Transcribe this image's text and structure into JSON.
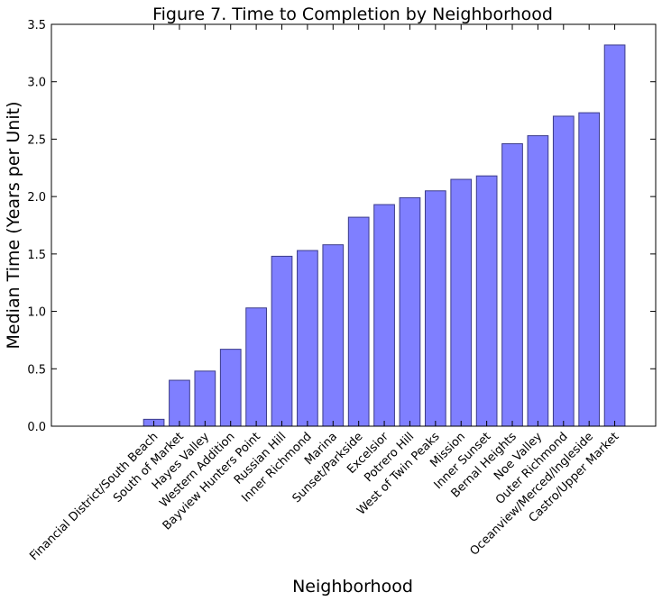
{
  "chart_data": {
    "type": "bar",
    "title": "Figure 7. Time to Completion by Neighborhood",
    "xlabel": "Neighborhood",
    "ylabel": "Median Time (Years per Unit)",
    "ylim": [
      0,
      3.5
    ],
    "yticks": [
      "0.0",
      "0.5",
      "1.0",
      "1.5",
      "2.0",
      "2.5",
      "3.0",
      "3.5"
    ],
    "grid": false,
    "categories": [
      "Financial District/South Beach",
      "South of Market",
      "Hayes Valley",
      "Western Addition",
      "Bayview Hunters Point",
      "Russian Hill",
      "Inner Richmond",
      "Marina",
      "Sunset/Parkside",
      "Excelsior",
      "Potrero Hill",
      "West of Twin Peaks",
      "Mission",
      "Inner Sunset",
      "Bernal Heights",
      "Noe Valley",
      "Outer Richmond",
      "Oceanview/Merced/Ingleside",
      "Castro/Upper Market"
    ],
    "values": [
      0.06,
      0.4,
      0.48,
      0.67,
      1.03,
      1.48,
      1.53,
      1.58,
      1.82,
      1.93,
      1.99,
      2.05,
      2.15,
      2.18,
      2.46,
      2.53,
      2.7,
      2.73,
      3.32
    ],
    "colors": {
      "bar": "#7f7fff",
      "bar_edge": "#3b3b8a"
    }
  }
}
